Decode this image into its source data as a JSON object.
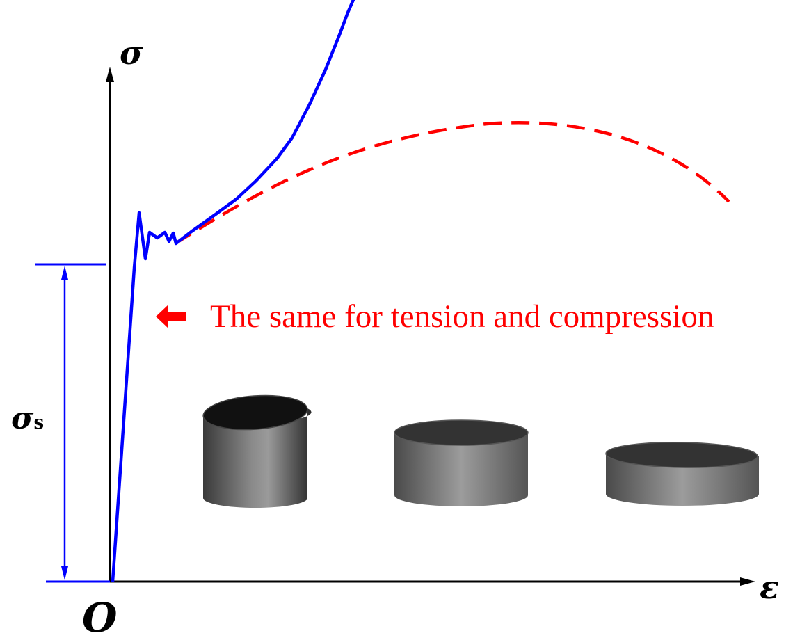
{
  "labels": {
    "y_axis": "σ",
    "x_axis": "ε",
    "origin": "O",
    "yield_symbol": "σ",
    "yield_subscript": "s"
  },
  "annotation": {
    "text": "The same for tension and compression"
  },
  "colors": {
    "tension_curve": "#0000ff",
    "compression_curve": "#ff0000",
    "annotation": "#ff0000",
    "dimension": "#0000ff",
    "axis": "#000000"
  },
  "icons": {
    "annotation_arrow": "left-arrow-icon",
    "specimens": [
      "cylinder-tall",
      "cylinder-medium",
      "cylinder-flat"
    ]
  }
}
